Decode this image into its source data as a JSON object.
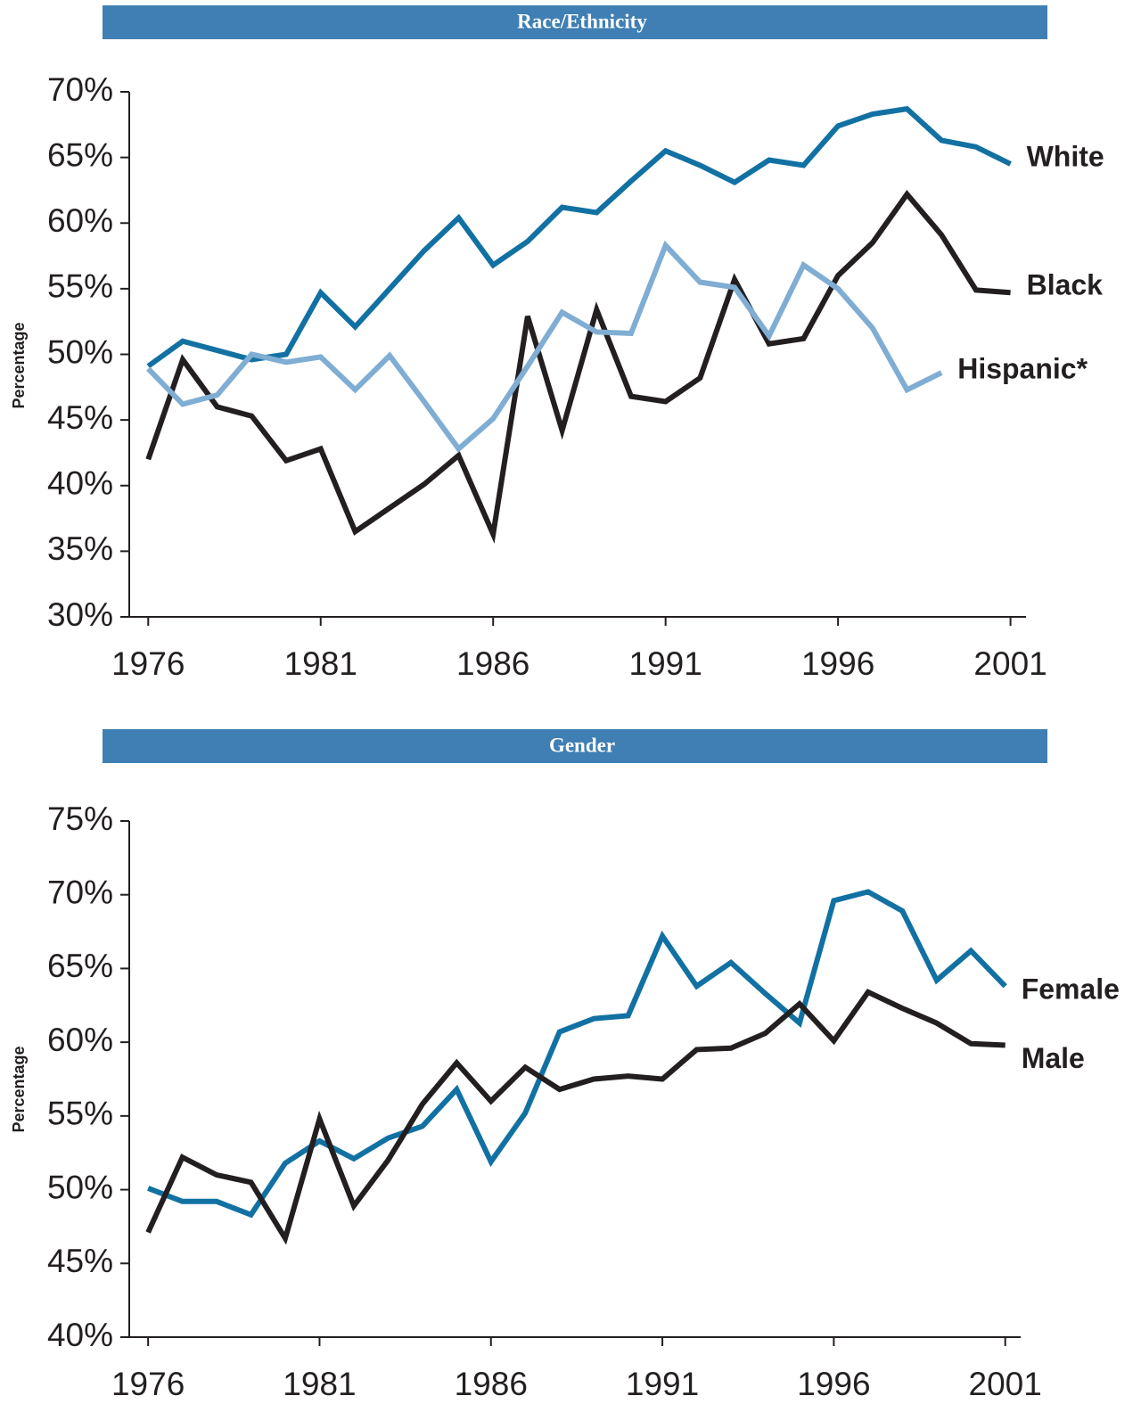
{
  "chart_data": [
    {
      "type": "line",
      "title": "Race/Ethnicity",
      "ylabel": "Percentage",
      "x": [
        1976,
        1977,
        1978,
        1979,
        1980,
        1981,
        1982,
        1983,
        1984,
        1985,
        1986,
        1987,
        1988,
        1989,
        1990,
        1991,
        1992,
        1993,
        1994,
        1995,
        1996,
        1997,
        1998,
        1999,
        2000,
        2001
      ],
      "series": [
        {
          "name": "White",
          "color": "#1271a3",
          "values": [
            49.1,
            51.0,
            50.3,
            49.6,
            50.0,
            54.7,
            52.1,
            55.0,
            57.9,
            60.4,
            56.8,
            58.6,
            61.2,
            60.8,
            63.2,
            65.5,
            64.4,
            63.1,
            64.8,
            64.4,
            67.4,
            68.3,
            68.7,
            66.3,
            65.8,
            64.5
          ]
        },
        {
          "name": "Black",
          "color": "#231f20",
          "values": [
            42.0,
            49.6,
            46.0,
            45.3,
            41.9,
            42.8,
            36.5,
            38.3,
            40.1,
            42.3,
            36.3,
            52.9,
            44.2,
            53.4,
            46.8,
            46.4,
            48.2,
            55.7,
            50.8,
            51.2,
            56.0,
            58.5,
            62.2,
            59.1,
            54.9,
            54.7
          ]
        },
        {
          "name": "Hispanic*",
          "color": "#7fadd3",
          "values": [
            48.9,
            46.2,
            46.9,
            50.0,
            49.4,
            49.8,
            47.3,
            49.9,
            46.4,
            42.8,
            45.1,
            49.1,
            53.2,
            51.7,
            51.6,
            58.3,
            55.5,
            55.1,
            51.4,
            56.8,
            55.0,
            52.0,
            47.3,
            48.6,
            null,
            null
          ]
        }
      ],
      "xlim": [
        1975.45,
        2001.45
      ],
      "xticks": [
        1976,
        1981,
        1986,
        1991,
        1996,
        2001
      ],
      "ylim": [
        30,
        70
      ],
      "yticks": [
        {
          "value": 30,
          "label": "30%"
        },
        {
          "value": 35,
          "label": "35%"
        },
        {
          "value": 40,
          "label": "40%"
        },
        {
          "value": 45,
          "label": "45%"
        },
        {
          "value": 50,
          "label": "50%"
        },
        {
          "value": 55,
          "label": "55%"
        },
        {
          "value": 60,
          "label": "60%"
        },
        {
          "value": 65,
          "label": "65%"
        },
        {
          "value": 70,
          "label": "70%"
        }
      ]
    },
    {
      "type": "line",
      "title": "Gender",
      "ylabel": "Percentage",
      "x": [
        1976,
        1977,
        1978,
        1979,
        1980,
        1981,
        1982,
        1983,
        1984,
        1985,
        1986,
        1987,
        1988,
        1989,
        1990,
        1991,
        1992,
        1993,
        1994,
        1995,
        1996,
        1997,
        1998,
        1999,
        2000,
        2001
      ],
      "series": [
        {
          "name": "Female",
          "color": "#1271a3",
          "values": [
            50.1,
            49.2,
            49.2,
            48.3,
            51.8,
            53.3,
            52.1,
            53.5,
            54.3,
            56.8,
            51.9,
            55.2,
            60.7,
            61.6,
            61.8,
            67.2,
            63.8,
            65.4,
            63.3,
            61.3,
            69.6,
            70.2,
            68.9,
            64.2,
            66.2,
            63.8
          ]
        },
        {
          "name": "Male",
          "color": "#231f20",
          "values": [
            47.1,
            52.2,
            51.0,
            50.5,
            46.7,
            54.8,
            48.9,
            52.0,
            55.8,
            58.6,
            56.0,
            58.3,
            56.8,
            57.5,
            57.7,
            57.5,
            59.5,
            59.6,
            60.6,
            62.6,
            60.1,
            63.4,
            62.3,
            61.3,
            59.9,
            59.8
          ]
        }
      ],
      "xlim": [
        1975.45,
        2001.45
      ],
      "xticks": [
        1976,
        1981,
        1986,
        1991,
        1996,
        2001
      ],
      "ylim": [
        40,
        75
      ],
      "yticks": [
        {
          "value": 40,
          "label": "40%"
        },
        {
          "value": 45,
          "label": "45%"
        },
        {
          "value": 50,
          "label": "50%"
        },
        {
          "value": 55,
          "label": "55%"
        },
        {
          "value": 60,
          "label": "60%"
        },
        {
          "value": 65,
          "label": "65%"
        },
        {
          "value": 70,
          "label": "70%"
        },
        {
          "value": 75,
          "label": "75%"
        }
      ]
    }
  ]
}
